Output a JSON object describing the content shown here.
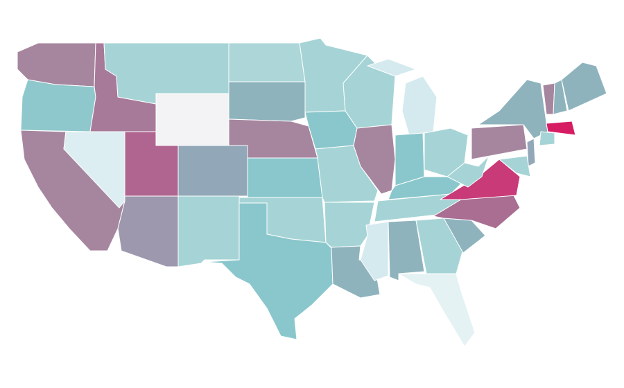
{
  "map": {
    "type": "choropleth",
    "regions": [
      {
        "fill": "#a6869f"
      },
      {
        "fill": "#8ec8cc"
      },
      {
        "fill": "#a6869f"
      },
      {
        "fill": "#dceef2"
      },
      {
        "fill": "#a87a9a"
      },
      {
        "fill": "#a6d4d6"
      },
      {
        "fill": "#f3f3f5"
      },
      {
        "fill": "#b06590"
      },
      {
        "fill": "#9d98ae"
      },
      {
        "fill": "#92a8b8"
      },
      {
        "fill": "#a6d4d6"
      },
      {
        "fill": "#acd6d8"
      },
      {
        "fill": "#8fb3bd"
      },
      {
        "fill": "#a6869f"
      },
      {
        "fill": "#8ac7cc"
      },
      {
        "fill": "#a6d4d6"
      },
      {
        "fill": "#8ac7cc"
      },
      {
        "fill": "#a6d4d6"
      },
      {
        "fill": "#8ac7cc"
      },
      {
        "fill": "#a6d4d6"
      },
      {
        "fill": "#a6d4d6"
      },
      {
        "fill": "#8fb3bd"
      },
      {
        "fill": "#a6d4d6"
      },
      {
        "fill": "#a6869f"
      },
      {
        "fill": "#d5eaef"
      },
      {
        "fill": "#d5eaef"
      },
      {
        "fill": "#8ac7cc"
      },
      {
        "fill": "#a6d4d6"
      },
      {
        "fill": "#8ac7cc"
      },
      {
        "fill": "#a6d4d6"
      },
      {
        "fill": "#d5eaef"
      },
      {
        "fill": "#8fb3bd"
      },
      {
        "fill": "#a6d4d6"
      },
      {
        "fill": "#e4f2f4"
      },
      {
        "fill": "#8fb3bd"
      },
      {
        "fill": "#a96e91"
      },
      {
        "fill": "#c93a78"
      },
      {
        "fill": "#a6d4d6"
      },
      {
        "fill": "#a6869f"
      },
      {
        "fill": "#8fb3bd"
      },
      {
        "fill": "#a6869f"
      },
      {
        "fill": "#8fb3bd"
      },
      {
        "fill": "#8fb3bd"
      },
      {
        "fill": "#d61d63"
      },
      {
        "fill": "#a6d4d6"
      },
      {
        "fill": "#92a8b8"
      },
      {
        "fill": "#a6d4d6"
      }
    ]
  }
}
